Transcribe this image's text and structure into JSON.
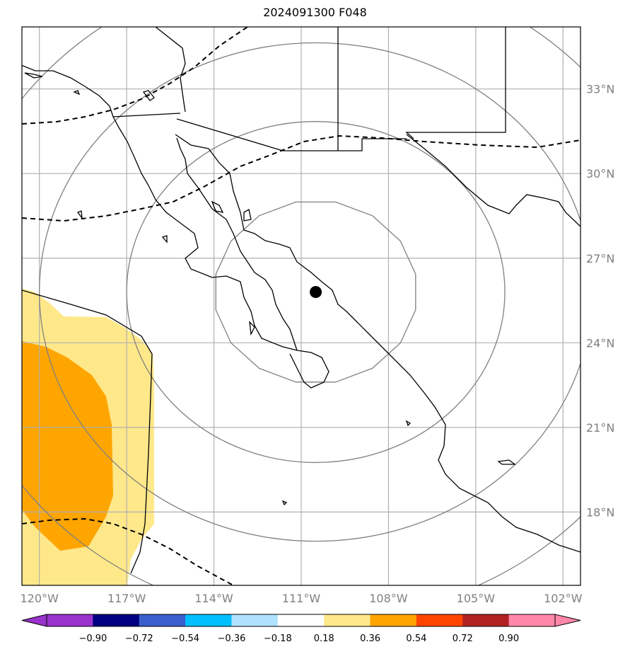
{
  "title": "2024091300 F048",
  "map": {
    "extent": {
      "lon": [
        -120.6,
        -101.4
      ],
      "lat": [
        15.4,
        35.2
      ]
    },
    "lat_ticks": [
      {
        "value": 33,
        "label": "33°N"
      },
      {
        "value": 30,
        "label": "30°N"
      },
      {
        "value": 27,
        "label": "27°N"
      },
      {
        "value": 24,
        "label": "24°N"
      },
      {
        "value": 21,
        "label": "21°N"
      },
      {
        "value": 18,
        "label": "18°N"
      }
    ],
    "lon_ticks": [
      {
        "value": -120,
        "label": "120°W"
      },
      {
        "value": -117,
        "label": "117°W"
      },
      {
        "value": -114,
        "label": "114°W"
      },
      {
        "value": -111,
        "label": "111°W"
      },
      {
        "value": -108,
        "label": "108°W"
      },
      {
        "value": -105,
        "label": "105°W"
      },
      {
        "value": -102,
        "label": "102°W"
      }
    ],
    "center_marker": {
      "lon": -110.5,
      "lat": 25.8
    },
    "range_rings_deg": [
      3.5,
      6.5,
      9.5,
      12.5
    ]
  },
  "colorbar": {
    "labels": [
      "−0.90",
      "−0.72",
      "−0.54",
      "−0.36",
      "−0.18",
      "0.18",
      "0.36",
      "0.54",
      "0.72",
      "0.90"
    ],
    "under_color": "#9932cc",
    "over_color": "#ff88aa",
    "colors": [
      "#9933cc",
      "#000080",
      "#3a5fcd",
      "#00bfff",
      "#b0e2ff",
      "#ffffff",
      "#ffe88a",
      "#ffa500",
      "#ff4500",
      "#b22222",
      "#ff88aa"
    ]
  },
  "colors": {
    "fill_low": "#ffe88a",
    "fill_mid": "#ffa500",
    "grid": "#b0b0b0",
    "ring": "#808080"
  }
}
